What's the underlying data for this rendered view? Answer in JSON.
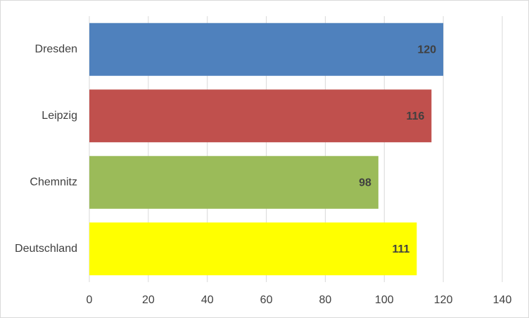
{
  "chart_data": {
    "type": "bar",
    "orientation": "horizontal",
    "categories": [
      "Dresden",
      "Leipzig",
      "Chemnitz",
      "Deutschland"
    ],
    "values": [
      120,
      116,
      98,
      111
    ],
    "colors": [
      "#4f81bd",
      "#c0504d",
      "#9bbb59",
      "#ffff00"
    ],
    "xlim": [
      0,
      140
    ],
    "xticks": [
      0,
      20,
      40,
      60,
      80,
      100,
      120,
      140
    ],
    "grid": true
  }
}
